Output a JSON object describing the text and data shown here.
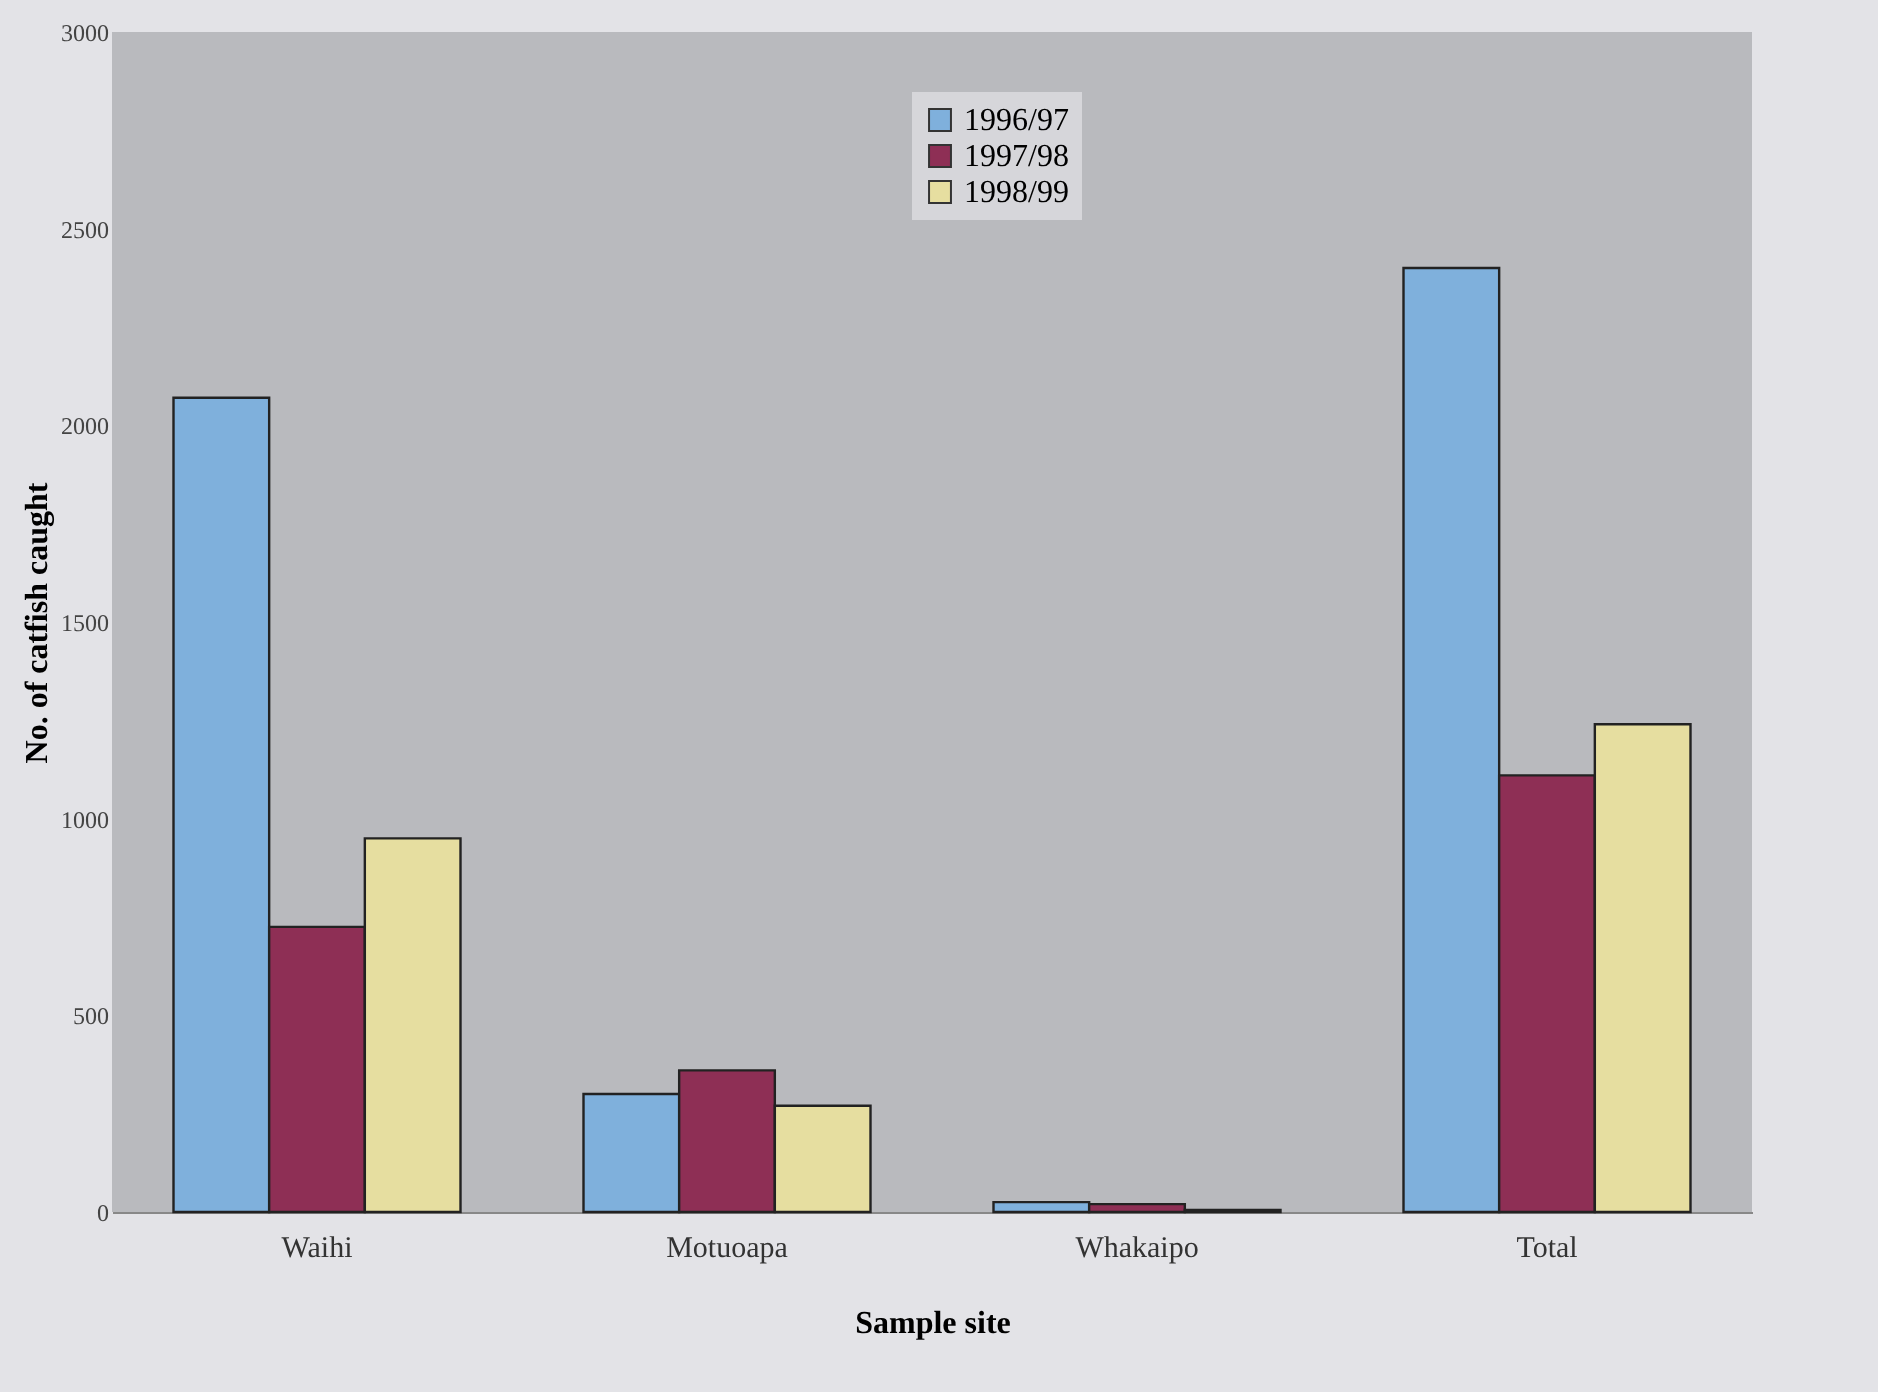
{
  "chart_data": {
    "type": "bar",
    "xlabel": "Sample site",
    "ylabel": "No. of catfish caught",
    "categories": [
      "Waihi",
      "Motuoapa",
      "Whakaipo",
      "Total"
    ],
    "series": [
      {
        "name": "1996/97",
        "color": "#7fb0dc",
        "values": [
          2070,
          300,
          25,
          2400
        ]
      },
      {
        "name": "1997/98",
        "color": "#8e2f55",
        "values": [
          725,
          360,
          20,
          1110
        ]
      },
      {
        "name": "1998/99",
        "color": "#e6dea0",
        "values": [
          950,
          270,
          5,
          1240
        ]
      }
    ],
    "ylim": [
      0,
      3000
    ],
    "yticks": [
      0,
      500,
      1000,
      1500,
      2000,
      2500,
      3000
    ],
    "grid": false,
    "legend": "top"
  }
}
